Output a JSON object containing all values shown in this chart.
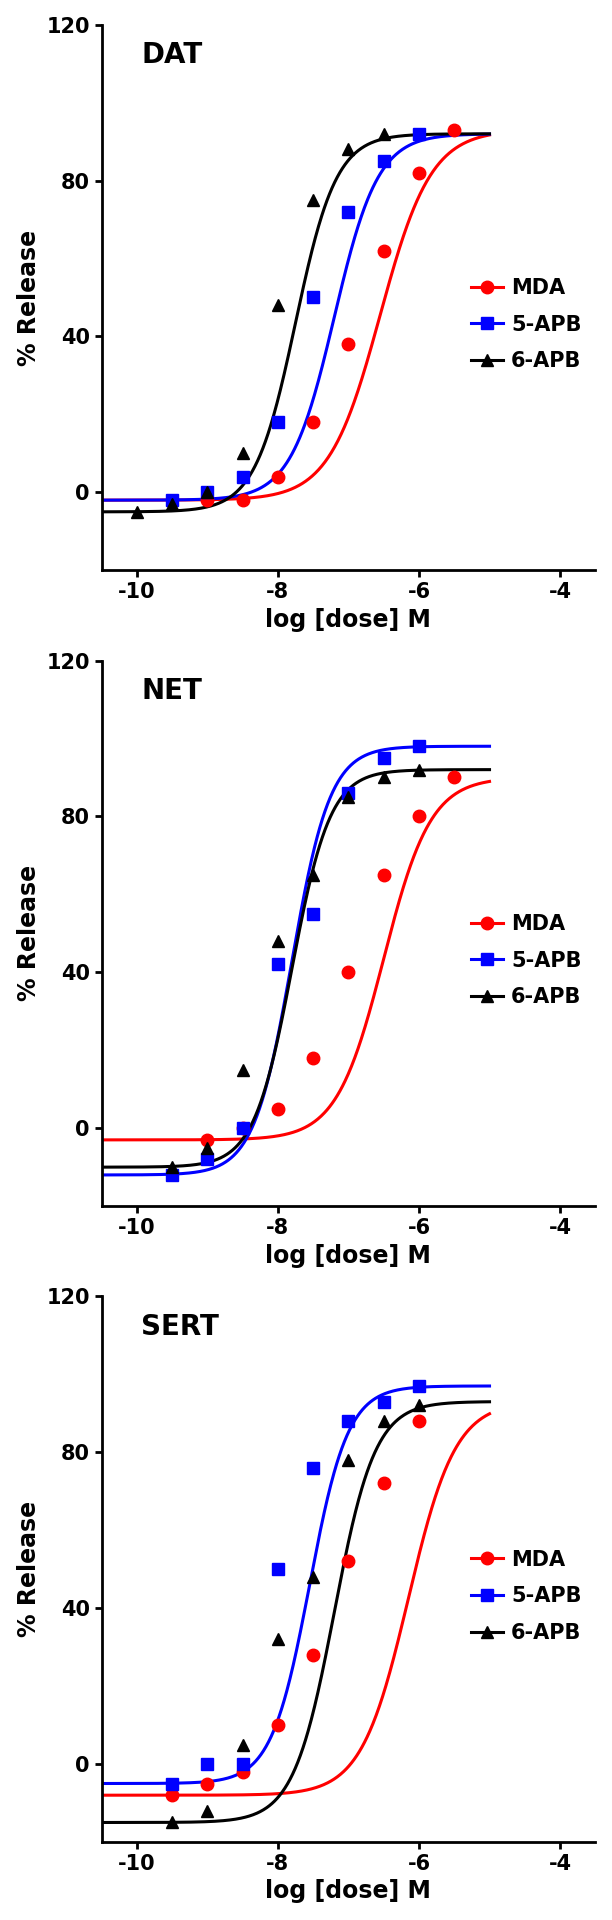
{
  "panels": [
    {
      "title": "DAT",
      "series": {
        "MDA": {
          "color": "#FF0000",
          "marker": "o",
          "ec50": -6.55,
          "hill": 1.2,
          "bottom": -2,
          "top": 93,
          "px": [
            -9.0,
            -8.5,
            -8.0,
            -7.5,
            -7.0,
            -6.5,
            -6.0,
            -5.5
          ],
          "py": [
            -2,
            -2,
            4,
            18,
            38,
            62,
            82,
            93
          ]
        },
        "5-APB": {
          "color": "#0000FF",
          "marker": "s",
          "ec50": -7.2,
          "hill": 1.4,
          "bottom": -2,
          "top": 92,
          "px": [
            -9.5,
            -9.0,
            -8.5,
            -8.0,
            -7.5,
            -7.0,
            -6.5,
            -6.0
          ],
          "py": [
            -2,
            0,
            4,
            18,
            50,
            72,
            85,
            92
          ]
        },
        "6-APB": {
          "color": "#000000",
          "marker": "^",
          "ec50": -7.75,
          "hill": 1.5,
          "bottom": -5,
          "top": 92,
          "px": [
            -10.0,
            -9.5,
            -9.0,
            -8.5,
            -8.0,
            -7.5,
            -7.0,
            -6.5
          ],
          "py": [
            -5,
            -3,
            0,
            10,
            48,
            75,
            88,
            92
          ]
        }
      }
    },
    {
      "title": "NET",
      "series": {
        "MDA": {
          "color": "#FF0000",
          "marker": "o",
          "ec50": -6.5,
          "hill": 1.3,
          "bottom": -3,
          "top": 90,
          "px": [
            -9.0,
            -8.5,
            -8.0,
            -7.5,
            -7.0,
            -6.5,
            -6.0,
            -5.5
          ],
          "py": [
            -3,
            0,
            5,
            18,
            40,
            65,
            80,
            90
          ]
        },
        "5-APB": {
          "color": "#0000FF",
          "marker": "s",
          "ec50": -7.8,
          "hill": 1.6,
          "bottom": -12,
          "top": 98,
          "px": [
            -9.5,
            -9.0,
            -8.5,
            -8.0,
            -7.5,
            -7.0,
            -6.5,
            -6.0
          ],
          "py": [
            -12,
            -8,
            0,
            42,
            55,
            86,
            95,
            98
          ]
        },
        "6-APB": {
          "color": "#000000",
          "marker": "^",
          "ec50": -7.8,
          "hill": 1.6,
          "bottom": -10,
          "top": 92,
          "px": [
            -9.5,
            -9.0,
            -8.5,
            -8.0,
            -7.5,
            -7.0,
            -6.5,
            -6.0
          ],
          "py": [
            -10,
            -5,
            15,
            48,
            65,
            85,
            90,
            92
          ]
        }
      }
    },
    {
      "title": "SERT",
      "series": {
        "MDA": {
          "color": "#FF0000",
          "marker": "o",
          "ec50": -6.15,
          "hill": 1.3,
          "bottom": -8,
          "top": 93,
          "px": [
            -9.5,
            -9.0,
            -8.5,
            -8.0,
            -7.5,
            -7.0,
            -6.5,
            -6.0
          ],
          "py": [
            -8,
            -5,
            -2,
            10,
            28,
            52,
            72,
            88
          ]
        },
        "5-APB": {
          "color": "#0000FF",
          "marker": "s",
          "ec50": -7.55,
          "hill": 1.6,
          "bottom": -5,
          "top": 97,
          "px": [
            -9.5,
            -9.0,
            -8.5,
            -8.0,
            -7.5,
            -7.0,
            -6.5,
            -6.0
          ],
          "py": [
            -5,
            0,
            0,
            50,
            76,
            88,
            93,
            97
          ]
        },
        "6-APB": {
          "color": "#000000",
          "marker": "^",
          "ec50": -7.2,
          "hill": 1.5,
          "bottom": -15,
          "top": 93,
          "px": [
            -9.5,
            -9.0,
            -8.5,
            -8.0,
            -7.5,
            -7.0,
            -6.5,
            -6.0
          ],
          "py": [
            -15,
            -12,
            5,
            32,
            48,
            78,
            88,
            92
          ]
        }
      }
    }
  ],
  "xlim": [
    -10.5,
    -3.5
  ],
  "ylim": [
    -20,
    120
  ],
  "yticks": [
    0,
    40,
    80,
    120
  ],
  "xticks": [
    -10,
    -8,
    -6,
    -4
  ],
  "xlabel": "log [dose] M",
  "ylabel": "% Release",
  "markersize": 9,
  "linewidth": 2.2,
  "curve_xmin": -10.5,
  "curve_xmax": -5.0
}
